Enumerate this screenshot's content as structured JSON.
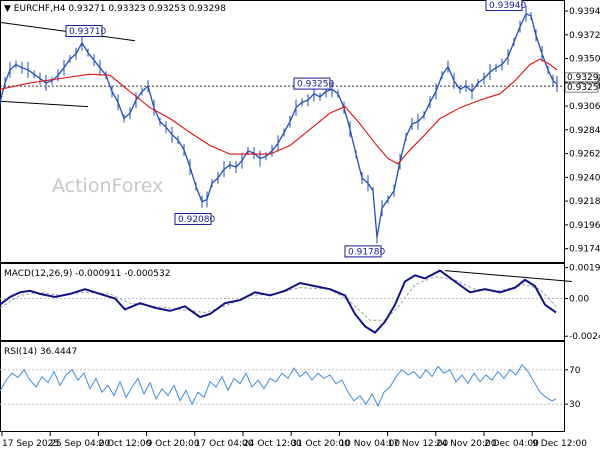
{
  "header": {
    "symbol": "EURCHF,H4",
    "ohlc": "0.93271 0.93323 0.93253 0.93298",
    "macd_label": "MACD(12,26,9) -0.000911 -0.000532",
    "rsi_label": "RSI(14) 36.4447"
  },
  "watermark": "ActionForex",
  "colors": {
    "price": "#1f4fbf",
    "ma": "#e01010",
    "macd": "#11118a",
    "signal": "#a0a0a0",
    "rsi": "#3d8fdc",
    "trend": "#000000",
    "box_border": "#1a1a9a"
  },
  "chart_data": [
    {
      "type": "line",
      "name": "price",
      "ylim": [
        0.9164,
        0.9401
      ],
      "yticks": [
        "0.93945",
        "0.93725",
        "0.93505",
        "0.93285",
        "0.93065",
        "0.92845",
        "0.92625",
        "0.92405",
        "0.92185",
        "0.91965",
        "0.91745"
      ],
      "current_price_labels": [
        "0.93298",
        "0.93250"
      ],
      "price_series": [
        [
          0,
          0.931
        ],
        [
          5,
          0.9328
        ],
        [
          10,
          0.934
        ],
        [
          16,
          0.9345
        ],
        [
          22,
          0.9342
        ],
        [
          28,
          0.934
        ],
        [
          34,
          0.9336
        ],
        [
          40,
          0.9332
        ],
        [
          46,
          0.9328
        ],
        [
          52,
          0.933
        ],
        [
          58,
          0.9335
        ],
        [
          64,
          0.9342
        ],
        [
          70,
          0.935
        ],
        [
          76,
          0.9355
        ],
        [
          82,
          0.9365
        ],
        [
          88,
          0.9356
        ],
        [
          94,
          0.9349
        ],
        [
          100,
          0.9342
        ],
        [
          106,
          0.9335
        ],
        [
          112,
          0.932
        ],
        [
          118,
          0.931
        ],
        [
          124,
          0.9295
        ],
        [
          130,
          0.93
        ],
        [
          136,
          0.9312
        ],
        [
          142,
          0.932
        ],
        [
          148,
          0.9325
        ],
        [
          154,
          0.9305
        ],
        [
          160,
          0.9292
        ],
        [
          166,
          0.9287
        ],
        [
          172,
          0.928
        ],
        [
          178,
          0.9275
        ],
        [
          184,
          0.9266
        ],
        [
          190,
          0.925
        ],
        [
          196,
          0.9232
        ],
        [
          202,
          0.9218
        ],
        [
          207,
          0.922
        ],
        [
          212,
          0.9235
        ],
        [
          218,
          0.924
        ],
        [
          224,
          0.9248
        ],
        [
          230,
          0.9252
        ],
        [
          236,
          0.925
        ],
        [
          242,
          0.9256
        ],
        [
          248,
          0.9265
        ],
        [
          254,
          0.9263
        ],
        [
          260,
          0.9258
        ],
        [
          266,
          0.926
        ],
        [
          272,
          0.9265
        ],
        [
          278,
          0.9272
        ],
        [
          284,
          0.9282
        ],
        [
          290,
          0.9292
        ],
        [
          296,
          0.9305
        ],
        [
          302,
          0.931
        ],
        [
          308,
          0.9312
        ],
        [
          314,
          0.9318
        ],
        [
          320,
          0.9315
        ],
        [
          326,
          0.932
        ],
        [
          332,
          0.9322
        ],
        [
          338,
          0.9318
        ],
        [
          344,
          0.9305
        ],
        [
          350,
          0.9285
        ],
        [
          356,
          0.9262
        ],
        [
          362,
          0.924
        ],
        [
          368,
          0.9235
        ],
        [
          373,
          0.9228
        ],
        [
          377,
          0.9185
        ],
        [
          382,
          0.9212
        ],
        [
          388,
          0.922
        ],
        [
          394,
          0.9228
        ],
        [
          400,
          0.9255
        ],
        [
          406,
          0.9278
        ],
        [
          412,
          0.929
        ],
        [
          418,
          0.9292
        ],
        [
          424,
          0.9298
        ],
        [
          430,
          0.931
        ],
        [
          436,
          0.932
        ],
        [
          442,
          0.9335
        ],
        [
          448,
          0.9343
        ],
        [
          454,
          0.933
        ],
        [
          460,
          0.9322
        ],
        [
          466,
          0.9325
        ],
        [
          472,
          0.932
        ],
        [
          478,
          0.9328
        ],
        [
          484,
          0.9332
        ],
        [
          490,
          0.9338
        ],
        [
          496,
          0.9342
        ],
        [
          502,
          0.9345
        ],
        [
          508,
          0.9352
        ],
        [
          514,
          0.9366
        ],
        [
          520,
          0.938
        ],
        [
          526,
          0.9392
        ],
        [
          531,
          0.939
        ],
        [
          536,
          0.9372
        ],
        [
          542,
          0.9355
        ],
        [
          548,
          0.934
        ],
        [
          553,
          0.933
        ],
        [
          557,
          0.9327
        ]
      ],
      "ma_series": [
        [
          0,
          0.9322
        ],
        [
          30,
          0.9328
        ],
        [
          60,
          0.9332
        ],
        [
          90,
          0.9336
        ],
        [
          110,
          0.9335
        ],
        [
          130,
          0.932
        ],
        [
          150,
          0.9305
        ],
        [
          170,
          0.9295
        ],
        [
          190,
          0.9282
        ],
        [
          210,
          0.927
        ],
        [
          230,
          0.9262
        ],
        [
          250,
          0.9262
        ],
        [
          270,
          0.9262
        ],
        [
          290,
          0.927
        ],
        [
          310,
          0.9285
        ],
        [
          330,
          0.93
        ],
        [
          345,
          0.9306
        ],
        [
          360,
          0.929
        ],
        [
          375,
          0.9272
        ],
        [
          388,
          0.9258
        ],
        [
          398,
          0.9253
        ],
        [
          410,
          0.9266
        ],
        [
          425,
          0.928
        ],
        [
          440,
          0.9295
        ],
        [
          460,
          0.9305
        ],
        [
          480,
          0.9312
        ],
        [
          500,
          0.9318
        ],
        [
          515,
          0.933
        ],
        [
          530,
          0.9345
        ],
        [
          540,
          0.935
        ],
        [
          550,
          0.9345
        ],
        [
          557,
          0.934
        ]
      ],
      "price_labels": [
        {
          "text": "0.93710",
          "x": 84,
          "y": 0.937
        },
        {
          "text": "0.93940",
          "x": 524,
          "y": 0.9394
        },
        {
          "text": "0.93250",
          "x": 326,
          "y": 0.9325
        },
        {
          "text": "0.92080",
          "x": 207,
          "y": 0.9208
        },
        {
          "text": "0.91780",
          "x": 377,
          "y": 0.9178
        }
      ],
      "trendlines": [
        {
          "x1": 0,
          "y1": 0.9384,
          "x2": 135,
          "y2": 0.9367
        },
        {
          "x1": 0,
          "y1": 0.9311,
          "x2": 88,
          "y2": 0.9306
        }
      ],
      "hline": 0.9325
    },
    {
      "type": "line",
      "name": "MACD",
      "ylim": [
        -0.00255,
        0.0021
      ],
      "yticks": [
        "0.001998",
        "0.00",
        "-0.002434"
      ],
      "macd_series": [
        [
          0,
          -0.0004
        ],
        [
          10,
          0.0001
        ],
        [
          20,
          0.0004
        ],
        [
          30,
          0.0005
        ],
        [
          40,
          0.0003
        ],
        [
          55,
          0.0001
        ],
        [
          70,
          0.0003
        ],
        [
          85,
          0.0006
        ],
        [
          100,
          0.0003
        ],
        [
          115,
          0.0
        ],
        [
          125,
          -0.0007
        ],
        [
          140,
          -0.0003
        ],
        [
          155,
          -0.0006
        ],
        [
          170,
          -0.0008
        ],
        [
          185,
          -0.0005
        ],
        [
          200,
          -0.0012
        ],
        [
          210,
          -0.001
        ],
        [
          225,
          -0.0003
        ],
        [
          240,
          -0.0001
        ],
        [
          255,
          0.0004
        ],
        [
          270,
          0.0002
        ],
        [
          285,
          0.0005
        ],
        [
          300,
          0.001
        ],
        [
          315,
          0.0008
        ],
        [
          330,
          0.0006
        ],
        [
          345,
          0.0002
        ],
        [
          355,
          -0.001
        ],
        [
          365,
          -0.0018
        ],
        [
          375,
          -0.0022
        ],
        [
          385,
          -0.0015
        ],
        [
          395,
          -0.0004
        ],
        [
          405,
          0.0011
        ],
        [
          415,
          0.0015
        ],
        [
          425,
          0.0013
        ],
        [
          440,
          0.0018
        ],
        [
          455,
          0.0011
        ],
        [
          470,
          0.0004
        ],
        [
          485,
          0.0006
        ],
        [
          500,
          0.0004
        ],
        [
          515,
          0.0007
        ],
        [
          525,
          0.0012
        ],
        [
          535,
          0.0008
        ],
        [
          545,
          -0.0004
        ],
        [
          556,
          -0.0009
        ]
      ],
      "signal_series": [
        [
          0,
          -0.0006
        ],
        [
          20,
          0.0002
        ],
        [
          40,
          0.0004
        ],
        [
          60,
          0.0002
        ],
        [
          85,
          0.0004
        ],
        [
          110,
          0.0003
        ],
        [
          130,
          -0.0003
        ],
        [
          155,
          -0.0005
        ],
        [
          180,
          -0.0007
        ],
        [
          205,
          -0.0009
        ],
        [
          225,
          -0.0005
        ],
        [
          250,
          0.0002
        ],
        [
          275,
          0.0003
        ],
        [
          300,
          0.0007
        ],
        [
          330,
          0.0006
        ],
        [
          350,
          -0.0002
        ],
        [
          370,
          -0.0014
        ],
        [
          385,
          -0.0014
        ],
        [
          400,
          -0.0004
        ],
        [
          415,
          0.0009
        ],
        [
          435,
          0.0014
        ],
        [
          455,
          0.0012
        ],
        [
          475,
          0.0006
        ],
        [
          500,
          0.0005
        ],
        [
          525,
          0.0009
        ],
        [
          540,
          0.0006
        ],
        [
          556,
          -0.0005
        ]
      ],
      "trendline": {
        "x1": 445,
        "y1": 0.0018,
        "x2": 572,
        "y2": 0.0011
      }
    },
    {
      "type": "line",
      "name": "RSI",
      "ylim": [
        0,
        100
      ],
      "yticks": [
        "70",
        "30"
      ],
      "levels": [
        70,
        30
      ],
      "rsi_series": [
        [
          0,
          45
        ],
        [
          6,
          58
        ],
        [
          12,
          66
        ],
        [
          18,
          61
        ],
        [
          24,
          70
        ],
        [
          30,
          58
        ],
        [
          36,
          50
        ],
        [
          42,
          62
        ],
        [
          48,
          55
        ],
        [
          54,
          68
        ],
        [
          60,
          52
        ],
        [
          66,
          64
        ],
        [
          72,
          70
        ],
        [
          78,
          58
        ],
        [
          84,
          66
        ],
        [
          90,
          48
        ],
        [
          96,
          60
        ],
        [
          102,
          44
        ],
        [
          108,
          52
        ],
        [
          114,
          40
        ],
        [
          120,
          56
        ],
        [
          126,
          38
        ],
        [
          132,
          50
        ],
        [
          138,
          60
        ],
        [
          144,
          42
        ],
        [
          150,
          55
        ],
        [
          156,
          36
        ],
        [
          162,
          48
        ],
        [
          168,
          40
        ],
        [
          174,
          52
        ],
        [
          180,
          34
        ],
        [
          186,
          46
        ],
        [
          192,
          30
        ],
        [
          198,
          44
        ],
        [
          204,
          38
        ],
        [
          210,
          56
        ],
        [
          216,
          50
        ],
        [
          222,
          62
        ],
        [
          228,
          46
        ],
        [
          234,
          60
        ],
        [
          240,
          54
        ],
        [
          246,
          66
        ],
        [
          252,
          50
        ],
        [
          258,
          58
        ],
        [
          264,
          48
        ],
        [
          270,
          60
        ],
        [
          276,
          56
        ],
        [
          282,
          66
        ],
        [
          288,
          60
        ],
        [
          294,
          72
        ],
        [
          300,
          62
        ],
        [
          306,
          68
        ],
        [
          312,
          58
        ],
        [
          318,
          66
        ],
        [
          324,
          60
        ],
        [
          330,
          64
        ],
        [
          336,
          54
        ],
        [
          342,
          58
        ],
        [
          348,
          44
        ],
        [
          354,
          34
        ],
        [
          360,
          40
        ],
        [
          366,
          30
        ],
        [
          372,
          42
        ],
        [
          378,
          28
        ],
        [
          384,
          44
        ],
        [
          390,
          50
        ],
        [
          396,
          62
        ],
        [
          402,
          70
        ],
        [
          408,
          64
        ],
        [
          414,
          68
        ],
        [
          420,
          60
        ],
        [
          426,
          70
        ],
        [
          432,
          62
        ],
        [
          438,
          74
        ],
        [
          444,
          66
        ],
        [
          450,
          70
        ],
        [
          456,
          56
        ],
        [
          462,
          64
        ],
        [
          468,
          54
        ],
        [
          474,
          66
        ],
        [
          480,
          56
        ],
        [
          486,
          64
        ],
        [
          492,
          58
        ],
        [
          498,
          68
        ],
        [
          504,
          60
        ],
        [
          510,
          70
        ],
        [
          516,
          64
        ],
        [
          522,
          76
        ],
        [
          528,
          68
        ],
        [
          534,
          56
        ],
        [
          540,
          44
        ],
        [
          546,
          38
        ],
        [
          552,
          34
        ],
        [
          556,
          36
        ]
      ]
    }
  ],
  "x_axis": {
    "labels": [
      "17 Sep 2025",
      "25 Sep 04:00",
      "2 Oct 12:00",
      "9 Oct 20:00",
      "17 Oct 04:00",
      "24 Oct 12:00",
      "31 Oct 20:00",
      "10 Nov 04:00",
      "17 Nov 12:00",
      "24 Nov 20:00",
      "2 Dec 04:00",
      "9 Dec 12:00"
    ]
  }
}
